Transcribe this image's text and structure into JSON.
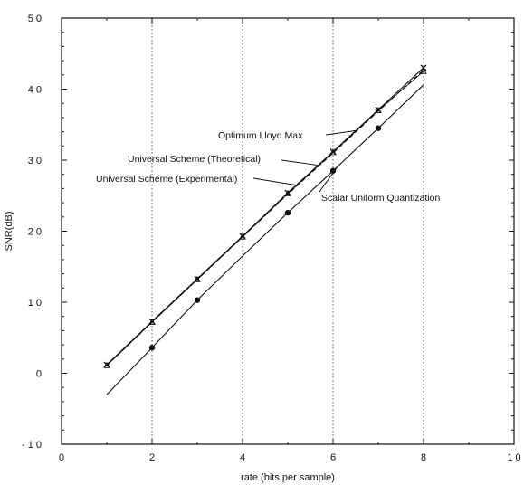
{
  "chart_data": {
    "type": "line",
    "xlabel": "rate (bits per sample)",
    "ylabel": "SNR(dB)",
    "xlim": [
      0,
      10
    ],
    "ylim": [
      -10,
      50
    ],
    "xticks": [
      0,
      2,
      4,
      6,
      8,
      10
    ],
    "yticks": [
      -10,
      0,
      10,
      20,
      30,
      40,
      50
    ],
    "xtick_labels": [
      "0",
      "2",
      "4",
      "6",
      "8",
      "1 0"
    ],
    "ytick_labels": [
      "- 1 0",
      "0",
      "1 0",
      "2 0",
      "3 0",
      "4 0",
      "5 0"
    ],
    "vertical_gridlines_at": [
      2,
      4,
      6,
      8
    ],
    "grid_style": "dotted vertical",
    "series": [
      {
        "name": "Optimum Lloyd Max",
        "marker": "x",
        "x": [
          1,
          2,
          3,
          4,
          5,
          6,
          7,
          8
        ],
        "y": [
          1.2,
          7.3,
          13.3,
          19.3,
          25.4,
          31.2,
          37.1,
          43.0
        ]
      },
      {
        "name": "Universal Scheme (Theoretical)",
        "marker": "none",
        "x": [
          1,
          2,
          3,
          4,
          5,
          6,
          7,
          8
        ],
        "y": [
          1.1,
          7.2,
          13.2,
          19.2,
          25.2,
          31.0,
          36.9,
          42.7
        ]
      },
      {
        "name": "Universal Scheme (Experimental)",
        "marker": "triangle",
        "x": [
          1,
          2,
          3,
          4,
          5,
          6,
          7,
          8
        ],
        "y": [
          1.1,
          7.2,
          13.2,
          19.2,
          25.3,
          31.1,
          37.0,
          42.5
        ]
      },
      {
        "name": "Scalar Uniform Quantization",
        "marker": "circle",
        "x": [
          1,
          2,
          3,
          4,
          5,
          6,
          7,
          8
        ],
        "y": [
          -3.0,
          3.6,
          10.3,
          16.5,
          22.6,
          28.5,
          34.5,
          40.6
        ],
        "points": [
          [
            2,
            3.6
          ],
          [
            3,
            10.3
          ],
          [
            5,
            22.6
          ],
          [
            6,
            28.5
          ],
          [
            7,
            34.5
          ]
        ]
      }
    ],
    "annotations": [
      {
        "text": "Optimum Lloyd Max",
        "series": 0
      },
      {
        "text": "Universal Scheme (Theoretical)",
        "series": 1
      },
      {
        "text": "Universal Scheme (Experimental)",
        "series": 2
      },
      {
        "text": "Scalar Uniform Quantization",
        "series": 3
      }
    ]
  }
}
